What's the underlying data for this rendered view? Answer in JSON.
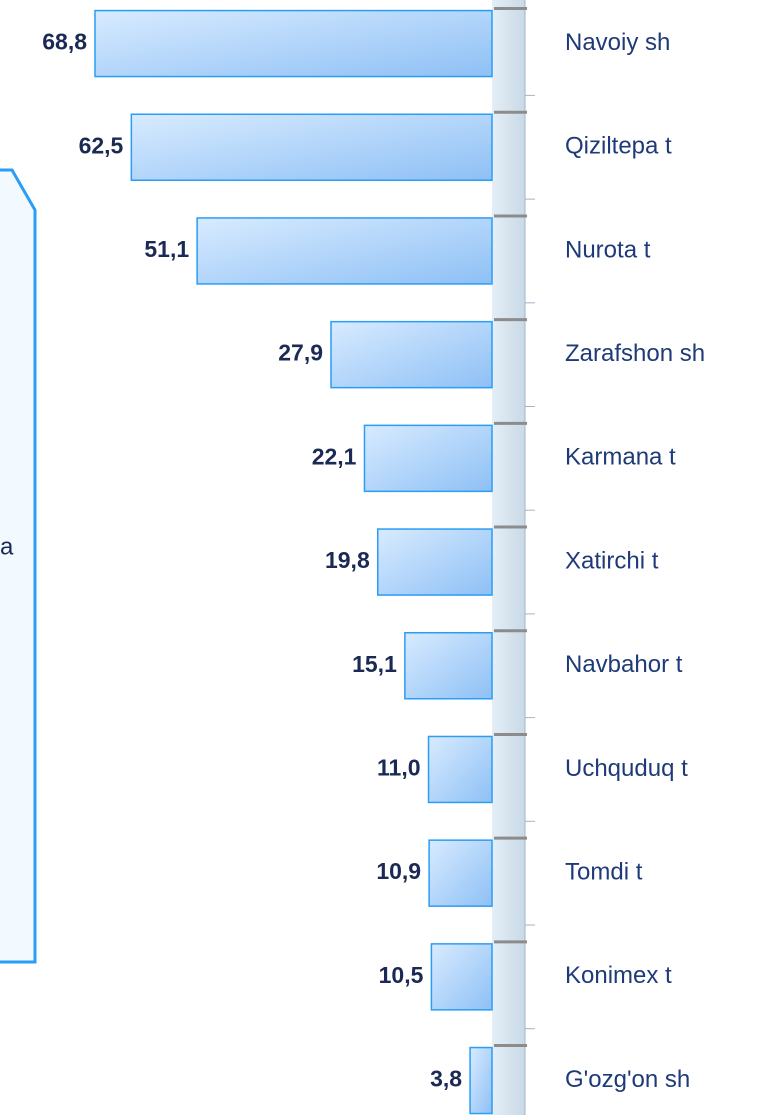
{
  "chart_data": {
    "type": "barh",
    "categories": [
      "Navoiy sh",
      "Qiziltepa t",
      "Nurota t",
      "Zarafshon sh",
      "Karmana t",
      "Xatirchi t",
      "Navbahor t",
      "Uchquduq t",
      "Tomdi t",
      "Konimex t",
      "G'ozg'on sh"
    ],
    "values": [
      68.8,
      62.5,
      51.1,
      27.9,
      22.1,
      19.8,
      15.1,
      11.0,
      10.9,
      10.5,
      3.8
    ],
    "value_labels": [
      "68,8",
      "62,5",
      "51,1",
      "27,9",
      "22,1",
      "19,8",
      "15,1",
      "11,0",
      "10,9",
      "10,5",
      "3,8"
    ],
    "color": "#8ec0f5"
  },
  "callout": {
    "text": "a"
  }
}
